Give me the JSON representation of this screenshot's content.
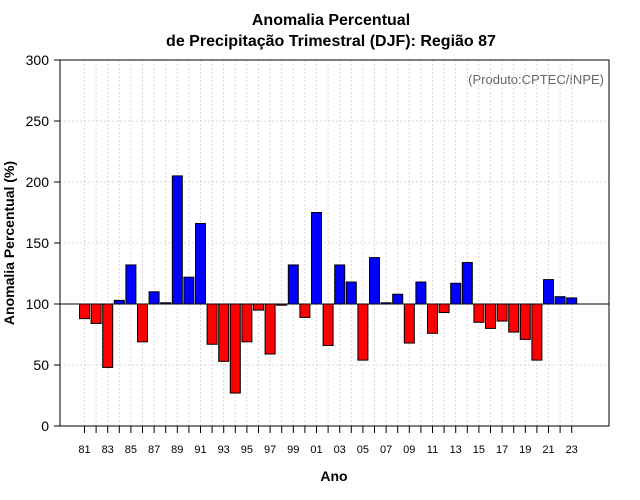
{
  "chart_data": {
    "type": "bar",
    "title_line1": "Anomalia Percentual",
    "title_line2": "de Precipitação Trimestral (DJF): Região 87",
    "xlabel": "Ano",
    "ylabel": "Anomalia Percentual (%)",
    "credit": "(Produto:CPTEC/INPE)",
    "ylim": [
      0,
      300
    ],
    "yticks": [
      0,
      50,
      100,
      150,
      200,
      250,
      300
    ],
    "baseline": 100,
    "grid": true,
    "colors": {
      "above": "#0000ff",
      "below": "#ff0000",
      "edge": "#000000",
      "baseline": "#000000",
      "grid": "#d9d9d9"
    },
    "categories": [
      "81",
      "82",
      "83",
      "84",
      "85",
      "86",
      "87",
      "88",
      "89",
      "90",
      "91",
      "92",
      "93",
      "94",
      "95",
      "96",
      "97",
      "98",
      "99",
      "00",
      "01",
      "02",
      "03",
      "04",
      "05",
      "06",
      "07",
      "08",
      "09",
      "10",
      "11",
      "12",
      "13",
      "14",
      "15",
      "16",
      "17",
      "18",
      "19",
      "20",
      "21",
      "22",
      "23"
    ],
    "tick_labels": [
      "81",
      "83",
      "85",
      "87",
      "89",
      "91",
      "93",
      "95",
      "97",
      "99",
      "01",
      "03",
      "05",
      "07",
      "09",
      "11",
      "13",
      "15",
      "17",
      "19",
      "21",
      "23"
    ],
    "values": [
      88,
      84,
      48,
      103,
      132,
      69,
      110,
      101,
      205,
      122,
      166,
      67,
      53,
      27,
      69,
      95,
      59,
      99,
      132,
      89,
      175,
      66,
      132,
      118,
      54,
      138,
      101,
      108,
      68,
      118,
      76,
      93,
      117,
      134,
      85,
      80,
      86,
      77,
      71,
      54,
      120,
      106,
      105
    ]
  }
}
